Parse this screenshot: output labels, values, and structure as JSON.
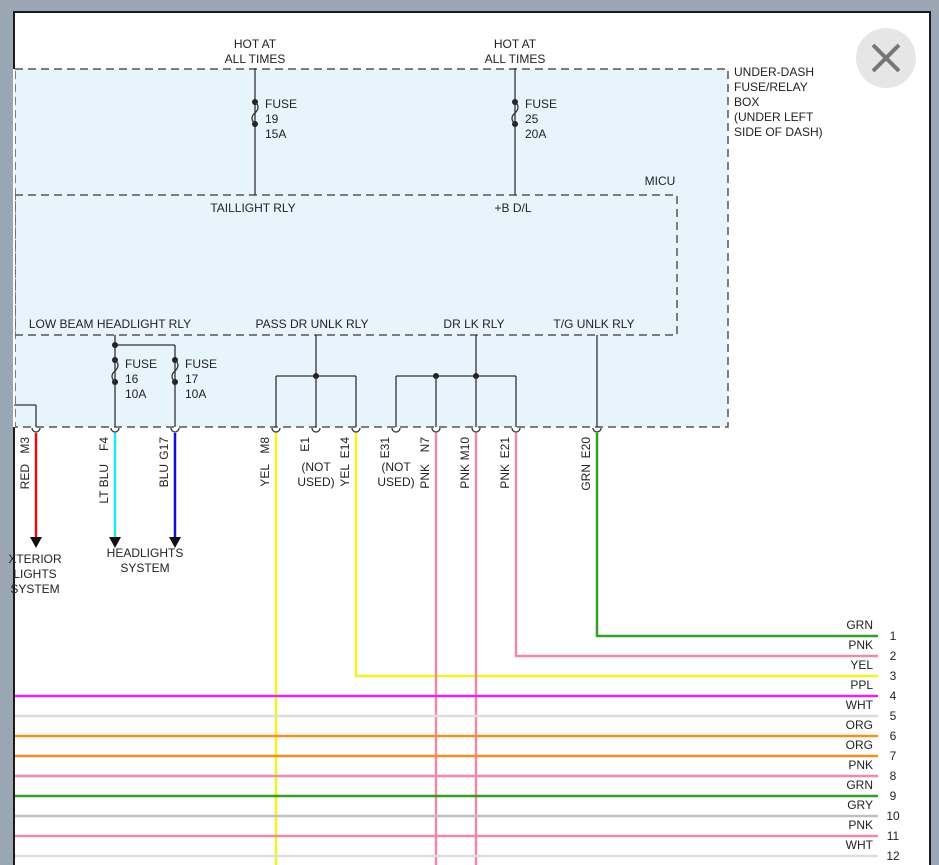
{
  "supplies": [
    {
      "label": [
        "HOT AT",
        "ALL TIMES"
      ],
      "fuse": [
        "FUSE",
        "19",
        "15A"
      ],
      "relay": "TAILLIGHT RLY"
    },
    {
      "label": [
        "HOT AT",
        "ALL TIMES"
      ],
      "fuse": [
        "FUSE",
        "25",
        "20A"
      ],
      "relay": "+B D/L"
    }
  ],
  "fuse_box_label": [
    "UNDER-DASH",
    "FUSE/RELAY",
    "BOX",
    "(UNDER LEFT",
    "SIDE OF DASH)"
  ],
  "micu_label": "MICU",
  "relays": [
    "LOW BEAM HEADLIGHT RLY",
    "PASS DR UNLK RLY",
    "DR LK RLY",
    "T/G UNLK RLY"
  ],
  "headlight_fuses": [
    [
      "FUSE",
      "16",
      "10A"
    ],
    [
      "FUSE",
      "17",
      "10A"
    ]
  ],
  "pins": [
    {
      "id": "M3",
      "wire": "RED",
      "color": "#e01010"
    },
    {
      "id": "F4",
      "wire": "LT BLU",
      "color": "#20e8f0"
    },
    {
      "id": "G17",
      "wire": "BLU",
      "color": "#1010d0"
    },
    {
      "id": "M8",
      "wire": "YEL",
      "color": "#f5f020"
    },
    {
      "id": "E1",
      "note": [
        "(NOT",
        "USED)"
      ]
    },
    {
      "id": "E14",
      "wire": "YEL",
      "color": "#f5f020"
    },
    {
      "id": "E31",
      "note": [
        "(NOT",
        "USED)"
      ]
    },
    {
      "id": "N7",
      "wire": "PNK",
      "color": "#f08aa8"
    },
    {
      "id": "M10",
      "wire": "PNK",
      "color": "#f08aa8"
    },
    {
      "id": "E21",
      "wire": "PNK",
      "color": "#f08aa8"
    },
    {
      "id": "E20",
      "wire": "GRN",
      "color": "#30a020"
    }
  ],
  "destinations": [
    [
      "XTERIOR",
      "LIGHTS",
      "SYSTEM"
    ],
    [
      "HEADLIGHTS",
      "SYSTEM"
    ]
  ],
  "harness": [
    {
      "wire": "GRN",
      "number": 1,
      "color": "#30a020"
    },
    {
      "wire": "PNK",
      "number": 2,
      "color": "#f08aa8"
    },
    {
      "wire": "YEL",
      "number": 3,
      "color": "#f5f020"
    },
    {
      "wire": "PPL",
      "number": 4,
      "color": "#f020f0"
    },
    {
      "wire": "WHT",
      "number": 5,
      "color": "#dddddd"
    },
    {
      "wire": "ORG",
      "number": 6,
      "color": "#f59020"
    },
    {
      "wire": "ORG",
      "number": 7,
      "color": "#f59020"
    },
    {
      "wire": "PNK",
      "number": 8,
      "color": "#f08aa8"
    },
    {
      "wire": "GRN",
      "number": 9,
      "color": "#30a020"
    },
    {
      "wire": "GRY",
      "number": 10,
      "color": "#c0c0c0"
    },
    {
      "wire": "PNK",
      "number": 11,
      "color": "#f08aa8"
    },
    {
      "wire": "WHT",
      "number": 12,
      "color": "#dddddd"
    }
  ]
}
